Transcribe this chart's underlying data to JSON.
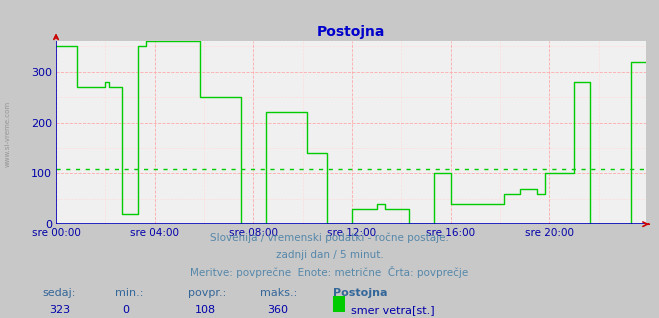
{
  "title": "Postojna",
  "bg_color": "#c8c8c8",
  "plot_bg_color": "#f0f0f0",
  "grid_color_major": "#ffaaaa",
  "grid_color_minor": "#ffdddd",
  "line_color": "#00cc00",
  "avg_line_color": "#00cc00",
  "avg_value": 108,
  "ylim": [
    0,
    360
  ],
  "yticks": [
    0,
    100,
    200,
    300
  ],
  "ylabel_color": "#0000aa",
  "xlabel_color": "#0000aa",
  "title_color": "#0000cc",
  "xtick_labels": [
    "sre 00:00",
    "sre 04:00",
    "sre 08:00",
    "sre 12:00",
    "sre 16:00",
    "sre 20:00"
  ],
  "subtitle1": "Slovenija / vremenski podatki - ročne postaje.",
  "subtitle2": "zadnji dan / 5 minut.",
  "subtitle3": "Meritve: povprečne  Enote: metrične  Črta: povprečje",
  "footer_sedaj_label": "sedaj:",
  "footer_min_label": "min.:",
  "footer_povpr_label": "povpr.:",
  "footer_maks_label": "maks.:",
  "footer_sedaj": "323",
  "footer_min": "0",
  "footer_povpr": "108",
  "footer_maks": "360",
  "footer_station": "Postojna",
  "footer_series": "smer vetra[st.]",
  "footer_color": "#0000aa",
  "footer_label_color": "#336699",
  "left_label": "www.si-vreme.com",
  "arrow_color": "#cc0000",
  "swatch_color": "#00cc00",
  "data_y": [
    350,
    350,
    350,
    350,
    350,
    350,
    350,
    350,
    350,
    350,
    270,
    270,
    270,
    270,
    270,
    270,
    270,
    270,
    270,
    270,
    270,
    270,
    270,
    270,
    280,
    280,
    270,
    270,
    270,
    270,
    270,
    270,
    20,
    20,
    20,
    20,
    20,
    20,
    20,
    20,
    350,
    350,
    350,
    350,
    360,
    360,
    360,
    360,
    360,
    360,
    360,
    360,
    360,
    360,
    360,
    360,
    360,
    360,
    360,
    360,
    360,
    360,
    360,
    360,
    360,
    360,
    360,
    360,
    360,
    360,
    250,
    250,
    250,
    250,
    250,
    250,
    250,
    250,
    250,
    250,
    250,
    250,
    250,
    250,
    250,
    250,
    250,
    250,
    250,
    250,
    0,
    0,
    0,
    0,
    0,
    0,
    0,
    0,
    0,
    0,
    0,
    0,
    220,
    220,
    220,
    220,
    220,
    220,
    220,
    220,
    220,
    220,
    220,
    220,
    220,
    220,
    220,
    220,
    220,
    220,
    220,
    220,
    140,
    140,
    140,
    140,
    140,
    140,
    140,
    140,
    140,
    140,
    0,
    0,
    0,
    0,
    0,
    0,
    0,
    0,
    0,
    0,
    0,
    0,
    30,
    30,
    30,
    30,
    30,
    30,
    30,
    30,
    30,
    30,
    30,
    30,
    40,
    40,
    40,
    40,
    30,
    30,
    30,
    30,
    30,
    30,
    30,
    30,
    30,
    30,
    30,
    30,
    0,
    0,
    0,
    0,
    0,
    0,
    0,
    0,
    0,
    0,
    0,
    0,
    100,
    100,
    100,
    100,
    100,
    100,
    100,
    100,
    40,
    40,
    40,
    40,
    40,
    40,
    40,
    40,
    40,
    40,
    40,
    40,
    40,
    40,
    40,
    40,
    40,
    40,
    40,
    40,
    40,
    40,
    40,
    40,
    40,
    40,
    60,
    60,
    60,
    60,
    60,
    60,
    60,
    60,
    70,
    70,
    70,
    70,
    70,
    70,
    70,
    70,
    60,
    60,
    60,
    60,
    100,
    100,
    100,
    100,
    100,
    100,
    100,
    100,
    100,
    100,
    100,
    100,
    100,
    100,
    280,
    280,
    280,
    280,
    280,
    280,
    280,
    280,
    0,
    0,
    0,
    0,
    0,
    0,
    0,
    0,
    0,
    0,
    0,
    0,
    0,
    0,
    0,
    0,
    0,
    0,
    0,
    0,
    320,
    320,
    320,
    320,
    320,
    320,
    320,
    320
  ]
}
